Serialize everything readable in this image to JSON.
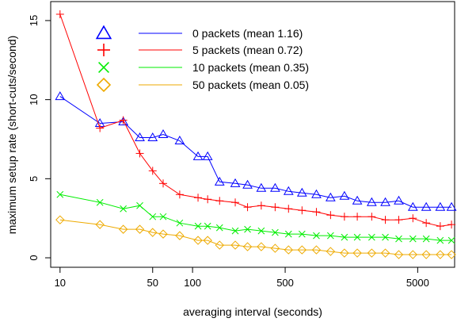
{
  "chart_data": {
    "type": "line",
    "x_scale": "log",
    "xlabel": "averaging interval (seconds)",
    "ylabel": "maximum setup rate (short-cuts/second)",
    "xlim": [
      8.5,
      9500
    ],
    "ylim": [
      -0.6,
      16.2
    ],
    "x_ticks": [
      10,
      50,
      100,
      500,
      5000
    ],
    "x_tick_labels": [
      "10",
      "50",
      "100",
      "500",
      "5000"
    ],
    "y_ticks": [
      0,
      5,
      10,
      15
    ],
    "y_tick_labels": [
      "0",
      "5",
      "10",
      "15"
    ],
    "grid": false,
    "legend_position": "top-left",
    "x": [
      10,
      20,
      30,
      40,
      50,
      60,
      80,
      110,
      130,
      160,
      210,
      260,
      330,
      420,
      530,
      670,
      860,
      1100,
      1400,
      1750,
      2250,
      2850,
      3600,
      4600,
      5800,
      7400,
      9000
    ],
    "series": [
      {
        "name": "0 packets (mean 1.16)",
        "color": "#0000ff",
        "marker": "triangle",
        "values": [
          10.2,
          8.5,
          8.6,
          7.6,
          7.6,
          7.8,
          7.4,
          6.4,
          6.4,
          4.8,
          4.7,
          4.6,
          4.4,
          4.4,
          4.2,
          4.1,
          4.0,
          3.8,
          3.9,
          3.6,
          3.5,
          3.5,
          3.6,
          3.2,
          3.2,
          3.2,
          3.2
        ]
      },
      {
        "name": "5 packets (mean 0.72)",
        "color": "#ff0000",
        "marker": "plus",
        "values": [
          15.4,
          8.2,
          8.7,
          6.6,
          5.5,
          4.7,
          4.0,
          3.8,
          3.7,
          3.6,
          3.5,
          3.2,
          3.3,
          3.2,
          3.1,
          3.0,
          2.9,
          2.7,
          2.6,
          2.6,
          2.6,
          2.4,
          2.4,
          2.5,
          2.2,
          2.0,
          2.1
        ]
      },
      {
        "name": "10 packets (mean 0.35)",
        "color": "#00ee00",
        "marker": "cross",
        "values": [
          4.0,
          3.5,
          3.1,
          3.3,
          2.6,
          2.6,
          2.2,
          2.0,
          2.0,
          1.9,
          1.7,
          1.8,
          1.7,
          1.6,
          1.5,
          1.5,
          1.4,
          1.4,
          1.3,
          1.3,
          1.3,
          1.3,
          1.2,
          1.2,
          1.2,
          1.1,
          1.1
        ]
      },
      {
        "name": "50 packets (mean 0.05)",
        "color": "#eeaa00",
        "marker": "diamond",
        "values": [
          2.4,
          2.1,
          1.8,
          1.8,
          1.6,
          1.5,
          1.4,
          1.1,
          1.1,
          0.8,
          0.8,
          0.7,
          0.7,
          0.6,
          0.5,
          0.5,
          0.5,
          0.4,
          0.3,
          0.3,
          0.3,
          0.3,
          0.2,
          0.2,
          0.2,
          0.2,
          0.2
        ]
      }
    ]
  }
}
